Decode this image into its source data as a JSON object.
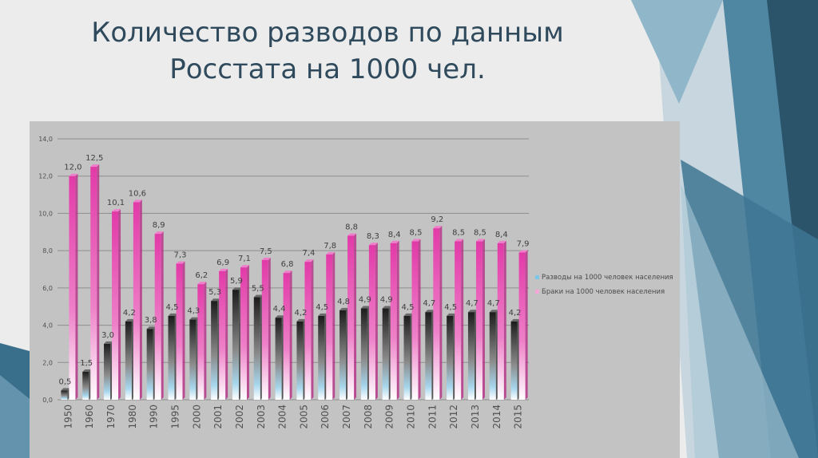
{
  "slide": {
    "title_line1": "Количество разводов по данным",
    "title_line2": "Росстата на 1000 чел."
  },
  "colors": {
    "background": "#ececec",
    "chart_panel": "#c3c3c3",
    "title": "#2f4a5c",
    "divorce_series": "#2a2a2a",
    "marriage_series": "#e23aa8",
    "decor_dark": "#2b536a",
    "decor_mid": "#4f86a2",
    "decor_light": "#8fb6c9"
  },
  "chart_data": {
    "type": "bar",
    "title": "",
    "xlabel": "",
    "ylabel": "",
    "ylim": [
      0,
      14
    ],
    "yticks": [
      "0,0",
      "2,0",
      "4,0",
      "6,0",
      "8,0",
      "10,0",
      "12,0",
      "14,0"
    ],
    "grid": true,
    "legend_position": "right",
    "categories": [
      "1950",
      "1960",
      "1970",
      "1980",
      "1990",
      "1995",
      "2000",
      "2001",
      "2002",
      "2003",
      "2004",
      "2005",
      "2006",
      "2007",
      "2008",
      "2009",
      "2010",
      "2011",
      "2012",
      "2013",
      "2014",
      "2015"
    ],
    "series": [
      {
        "name": "Разводы на 1000 человек населения",
        "values": [
          0.5,
          1.5,
          3.0,
          4.2,
          3.8,
          4.5,
          4.3,
          5.3,
          5.9,
          5.5,
          4.4,
          4.2,
          4.5,
          4.8,
          4.9,
          4.9,
          4.5,
          4.7,
          4.5,
          4.7,
          4.7,
          4.2
        ],
        "labels": [
          "0,5",
          "1,5",
          "3,0",
          "4,2",
          "3,8",
          "4,5",
          "4,3",
          "5,3",
          "5,9",
          "5,5",
          "4,4",
          "4,2",
          "4,5",
          "4,8",
          "4,9",
          "4,9",
          "4,5",
          "4,7",
          "4,5",
          "4,7",
          "4,7",
          "4,2"
        ]
      },
      {
        "name": "Браки на 1000 человек населения",
        "values": [
          12.0,
          12.5,
          10.1,
          10.6,
          8.9,
          7.3,
          6.2,
          6.9,
          7.1,
          7.5,
          6.8,
          7.4,
          7.8,
          8.8,
          8.3,
          8.4,
          8.5,
          9.2,
          8.5,
          8.5,
          8.4,
          7.9
        ],
        "labels": [
          "12,0",
          "12,5",
          "10,1",
          "10,6",
          "8,9",
          "7,3",
          "6,2",
          "6,9",
          "7,1",
          "7,5",
          "6,8",
          "7,4",
          "7,8",
          "8,8",
          "8,3",
          "8,4",
          "8,5",
          "9,2",
          "8,5",
          "8,5",
          "8,4",
          "7,9"
        ]
      }
    ]
  }
}
